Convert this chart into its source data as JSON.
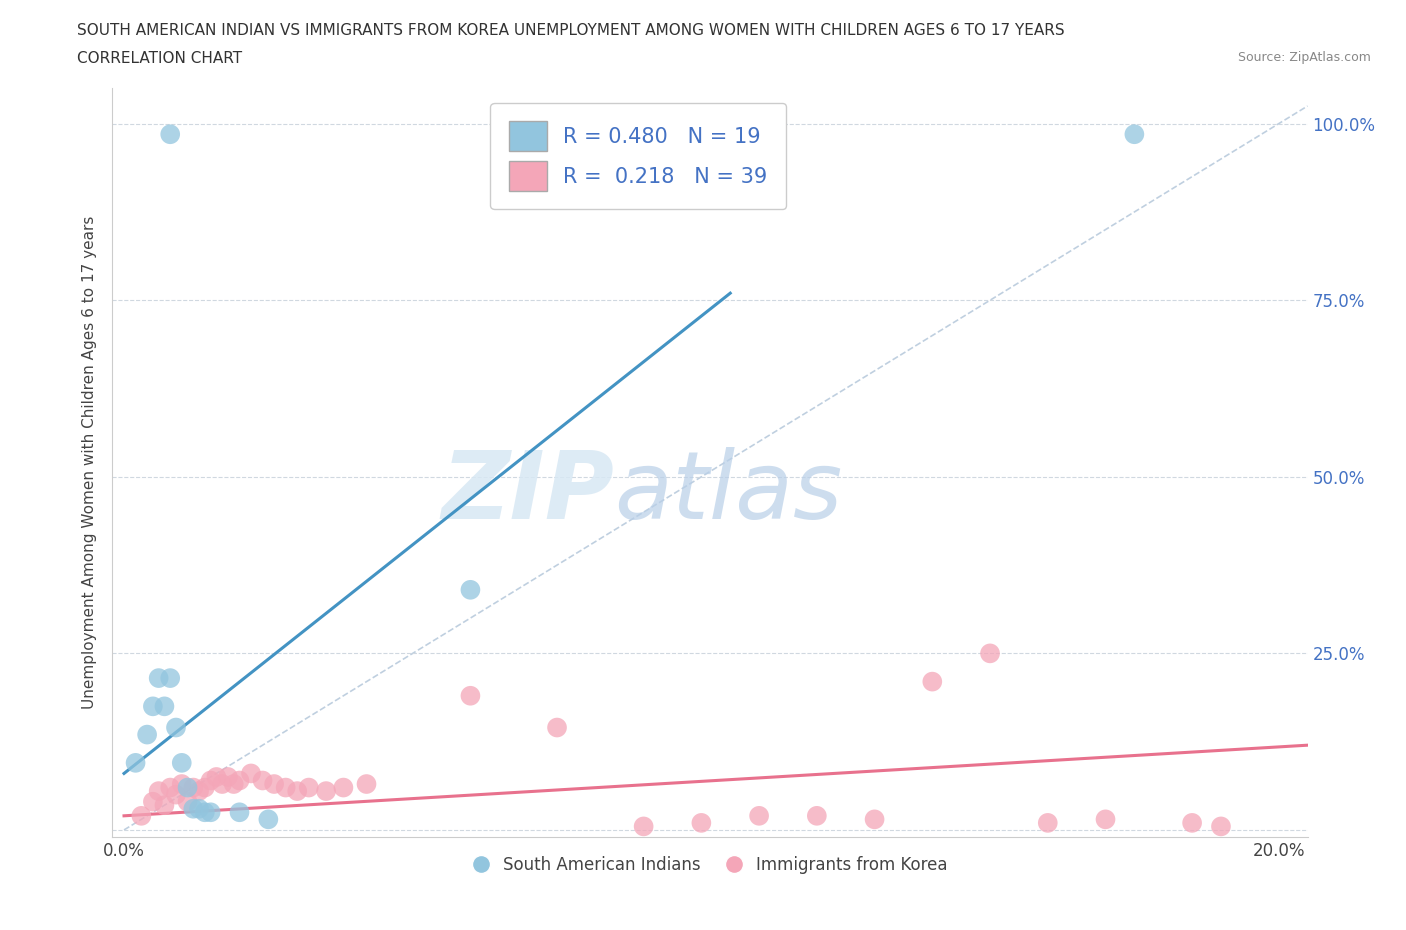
{
  "title_line1": "SOUTH AMERICAN INDIAN VS IMMIGRANTS FROM KOREA UNEMPLOYMENT AMONG WOMEN WITH CHILDREN AGES 6 TO 17 YEARS",
  "title_line2": "CORRELATION CHART",
  "source_text": "Source: ZipAtlas.com",
  "ylabel": "Unemployment Among Women with Children Ages 6 to 17 years",
  "xlim": [
    -0.002,
    0.205
  ],
  "ylim": [
    -0.01,
    1.05
  ],
  "xticks": [
    0.0,
    0.05,
    0.1,
    0.15,
    0.2
  ],
  "xtick_labels": [
    "0.0%",
    "",
    "",
    "",
    "20.0%"
  ],
  "yticks": [
    0.0,
    0.25,
    0.5,
    0.75,
    1.0
  ],
  "ytick_labels_right": [
    "",
    "25.0%",
    "50.0%",
    "75.0%",
    "100.0%"
  ],
  "watermark_zip": "ZIP",
  "watermark_atlas": "atlas",
  "legend_blue_r": "R = 0.480",
  "legend_blue_n": "N = 19",
  "legend_pink_r": "R =  0.218",
  "legend_pink_n": "N = 39",
  "blue_color": "#92c5de",
  "pink_color": "#f4a6b8",
  "blue_line_color": "#4393c3",
  "pink_line_color": "#e8718d",
  "blue_scatter": [
    [
      0.002,
      0.095
    ],
    [
      0.004,
      0.135
    ],
    [
      0.005,
      0.175
    ],
    [
      0.006,
      0.215
    ],
    [
      0.007,
      0.175
    ],
    [
      0.008,
      0.215
    ],
    [
      0.009,
      0.145
    ],
    [
      0.01,
      0.095
    ],
    [
      0.011,
      0.06
    ],
    [
      0.012,
      0.03
    ],
    [
      0.013,
      0.03
    ],
    [
      0.014,
      0.025
    ],
    [
      0.015,
      0.025
    ],
    [
      0.02,
      0.025
    ],
    [
      0.06,
      0.34
    ],
    [
      0.008,
      0.985
    ],
    [
      0.09,
      0.985
    ],
    [
      0.175,
      0.985
    ],
    [
      0.025,
      0.015
    ]
  ],
  "pink_scatter": [
    [
      0.003,
      0.02
    ],
    [
      0.005,
      0.04
    ],
    [
      0.006,
      0.055
    ],
    [
      0.007,
      0.035
    ],
    [
      0.008,
      0.06
    ],
    [
      0.009,
      0.05
    ],
    [
      0.01,
      0.065
    ],
    [
      0.011,
      0.04
    ],
    [
      0.012,
      0.06
    ],
    [
      0.013,
      0.055
    ],
    [
      0.014,
      0.06
    ],
    [
      0.015,
      0.07
    ],
    [
      0.016,
      0.075
    ],
    [
      0.017,
      0.065
    ],
    [
      0.018,
      0.075
    ],
    [
      0.019,
      0.065
    ],
    [
      0.02,
      0.07
    ],
    [
      0.022,
      0.08
    ],
    [
      0.024,
      0.07
    ],
    [
      0.026,
      0.065
    ],
    [
      0.028,
      0.06
    ],
    [
      0.03,
      0.055
    ],
    [
      0.032,
      0.06
    ],
    [
      0.035,
      0.055
    ],
    [
      0.038,
      0.06
    ],
    [
      0.042,
      0.065
    ],
    [
      0.06,
      0.19
    ],
    [
      0.075,
      0.145
    ],
    [
      0.09,
      0.005
    ],
    [
      0.1,
      0.01
    ],
    [
      0.11,
      0.02
    ],
    [
      0.12,
      0.02
    ],
    [
      0.13,
      0.015
    ],
    [
      0.14,
      0.21
    ],
    [
      0.15,
      0.25
    ],
    [
      0.16,
      0.01
    ],
    [
      0.17,
      0.015
    ],
    [
      0.185,
      0.01
    ],
    [
      0.19,
      0.005
    ]
  ],
  "blue_line_x": [
    0.0,
    0.105
  ],
  "blue_line_y": [
    0.08,
    0.76
  ],
  "pink_line_x": [
    0.0,
    0.205
  ],
  "pink_line_y": [
    0.02,
    0.12
  ],
  "diag_line_x": [
    0.0,
    0.205
  ],
  "diag_line_y": [
    0.0,
    1.025
  ],
  "bg_color": "#ffffff",
  "grid_color": "#d0d8e0"
}
